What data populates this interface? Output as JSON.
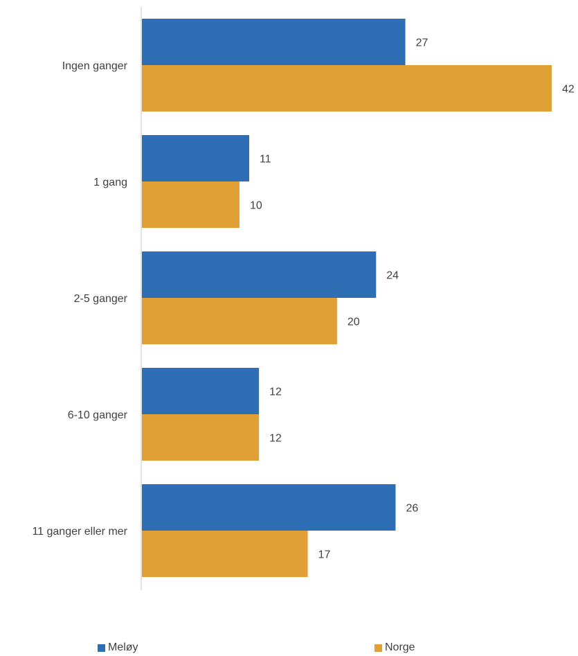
{
  "chart_data": {
    "type": "bar",
    "orientation": "horizontal",
    "categories": [
      "Ingen ganger",
      "1 gang",
      "2-5 ganger",
      "6-10 ganger",
      "11 ganger eller mer"
    ],
    "series": [
      {
        "name": "Meløy",
        "color": "#2E6EB5",
        "values": [
          27,
          11,
          24,
          12,
          26
        ]
      },
      {
        "name": "Norge",
        "color": "#E0A036",
        "values": [
          42,
          10,
          20,
          12,
          17
        ]
      }
    ],
    "xlim": [
      0,
      42
    ],
    "grid": false,
    "legend_position": "bottom"
  }
}
